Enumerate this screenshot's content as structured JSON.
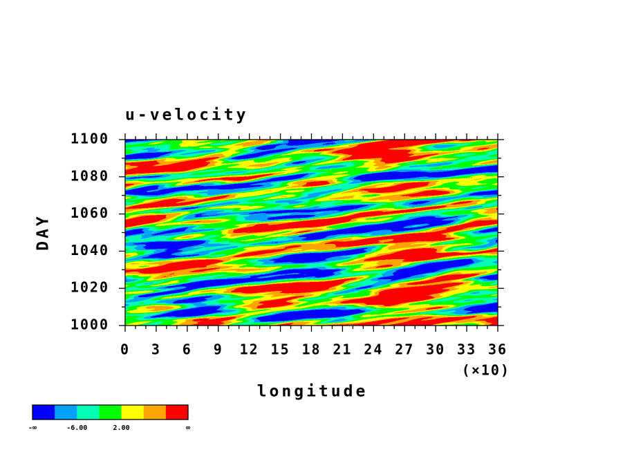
{
  "chart_data": {
    "type": "contour",
    "title": "u-velocity",
    "x_label": "longitude",
    "y_label": "DAY",
    "x_multiplier_label": "(×10)",
    "xlim": [
      0,
      36
    ],
    "xticks": [
      0,
      3,
      6,
      9,
      12,
      15,
      18,
      21,
      24,
      27,
      30,
      33,
      36
    ],
    "x_minor_ticks": [
      1,
      2,
      4,
      5,
      7,
      8,
      10,
      11,
      13,
      14,
      16,
      17,
      19,
      20,
      22,
      23,
      25,
      26,
      28,
      29,
      31,
      32,
      34,
      35
    ],
    "ylim": [
      1000,
      1100
    ],
    "yticks": [
      1000,
      1020,
      1040,
      1060,
      1080,
      1100
    ],
    "y_minor_ticks": [
      1010,
      1030,
      1050,
      1070,
      1090
    ],
    "colorbar": {
      "colors": [
        "#0000ff",
        "#00a0ff",
        "#00ffb4",
        "#00ff00",
        "#ffff00",
        "#ffa500",
        "#ff0000"
      ],
      "labels": [
        "-∞",
        "-6.00",
        "2.00",
        "∞"
      ]
    }
  }
}
